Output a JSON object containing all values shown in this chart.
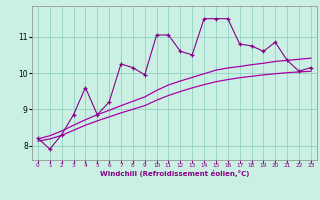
{
  "title": "",
  "xlabel": "Windchill (Refroidissement éolien,°C)",
  "ylabel": "",
  "bg_color": "#caf0e4",
  "line_color": "#880088",
  "smooth_color": "#aa00aa",
  "xmin": -0.5,
  "xmax": 23.5,
  "ymin": 7.6,
  "ymax": 11.85,
  "yticks": [
    8,
    9,
    10,
    11
  ],
  "xticks": [
    0,
    1,
    2,
    3,
    4,
    5,
    6,
    7,
    8,
    9,
    10,
    11,
    12,
    13,
    14,
    15,
    16,
    17,
    18,
    19,
    20,
    21,
    22,
    23
  ],
  "main_x": [
    0,
    1,
    2,
    3,
    4,
    5,
    6,
    7,
    8,
    9,
    10,
    11,
    12,
    13,
    14,
    15,
    16,
    17,
    18,
    19,
    20,
    21,
    22,
    23
  ],
  "main_y": [
    8.2,
    7.9,
    8.3,
    8.85,
    9.6,
    8.85,
    9.2,
    10.25,
    10.15,
    9.95,
    11.05,
    11.05,
    10.6,
    10.5,
    11.5,
    11.5,
    11.5,
    10.8,
    10.75,
    10.6,
    10.85,
    10.35,
    10.05,
    10.15
  ],
  "smooth1_x": [
    0,
    1,
    2,
    3,
    4,
    5,
    6,
    7,
    8,
    9,
    10,
    11,
    12,
    13,
    14,
    15,
    16,
    17,
    18,
    19,
    20,
    21,
    22,
    23
  ],
  "smooth1_y": [
    8.12,
    8.18,
    8.28,
    8.42,
    8.56,
    8.68,
    8.79,
    8.9,
    9.0,
    9.1,
    9.25,
    9.38,
    9.49,
    9.59,
    9.68,
    9.76,
    9.82,
    9.87,
    9.91,
    9.95,
    9.98,
    10.01,
    10.03,
    10.05
  ],
  "smooth2_x": [
    0,
    1,
    2,
    3,
    4,
    5,
    6,
    7,
    8,
    9,
    10,
    11,
    12,
    13,
    14,
    15,
    16,
    17,
    18,
    19,
    20,
    21,
    22,
    23
  ],
  "smooth2_y": [
    8.18,
    8.27,
    8.4,
    8.56,
    8.71,
    8.85,
    8.97,
    9.1,
    9.22,
    9.34,
    9.52,
    9.67,
    9.78,
    9.88,
    9.98,
    10.08,
    10.14,
    10.18,
    10.23,
    10.27,
    10.32,
    10.35,
    10.38,
    10.41
  ]
}
